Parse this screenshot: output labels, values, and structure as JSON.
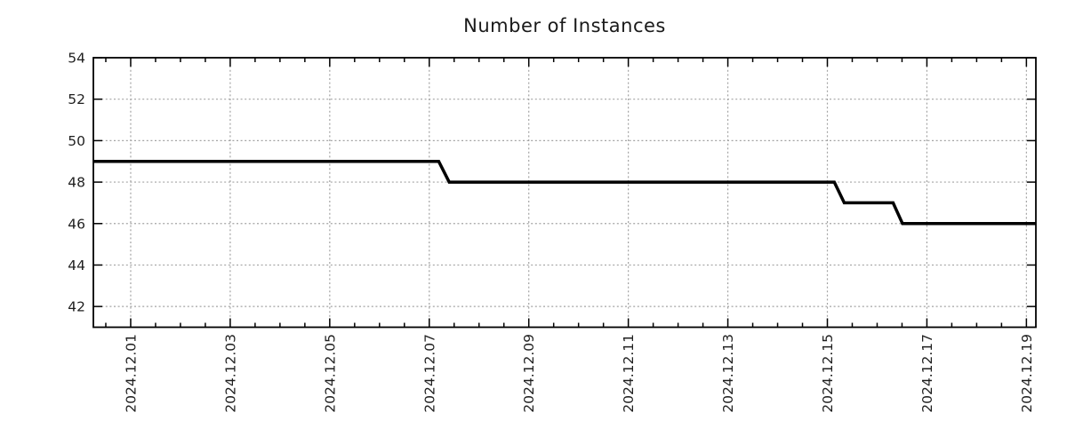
{
  "chart_data": {
    "type": "line",
    "subtype": "step",
    "title": "Number of Instances",
    "legend": "none",
    "grid": "dotted",
    "line_color": "#000000",
    "grid_color": "#a3a3a3",
    "axis_color": "#000000",
    "text_color": "#1f1f1f",
    "ylim": [
      41,
      54
    ],
    "y_ticks": [
      42,
      44,
      46,
      48,
      50,
      52,
      54
    ],
    "xlim_days": [
      -0.75,
      18.19
    ],
    "x_minor_step_days": 0.5,
    "x_ticks": [
      {
        "day": 0,
        "label": "2024.12.01"
      },
      {
        "day": 2,
        "label": "2024.12.03"
      },
      {
        "day": 4,
        "label": "2024.12.05"
      },
      {
        "day": 6,
        "label": "2024.12.07"
      },
      {
        "day": 8,
        "label": "2024.12.09"
      },
      {
        "day": 10,
        "label": "2024.12.11"
      },
      {
        "day": 12,
        "label": "2024.12.13"
      },
      {
        "day": 14,
        "label": "2024.12.15"
      },
      {
        "day": 16,
        "label": "2024.12.17"
      },
      {
        "day": 18,
        "label": "2024.12.19"
      }
    ],
    "series": [
      {
        "name": "instances",
        "points": [
          {
            "day": -0.75,
            "value": 49
          },
          {
            "day": 6.19,
            "value": 49
          },
          {
            "day": 6.4,
            "value": 48
          },
          {
            "day": 14.14,
            "value": 48
          },
          {
            "day": 14.34,
            "value": 47
          },
          {
            "day": 15.32,
            "value": 47
          },
          {
            "day": 15.51,
            "value": 46
          },
          {
            "day": 18.19,
            "value": 46
          }
        ]
      }
    ],
    "steps_summary": [
      {
        "value": 49,
        "from": "2024.11.30",
        "to": "2024.12.07"
      },
      {
        "value": 48,
        "from": "2024.12.07",
        "to": "2024.12.15"
      },
      {
        "value": 47,
        "from": "2024.12.15",
        "to": "2024.12.16"
      },
      {
        "value": 46,
        "from": "2024.12.16",
        "to": "2024.12.19"
      }
    ]
  }
}
